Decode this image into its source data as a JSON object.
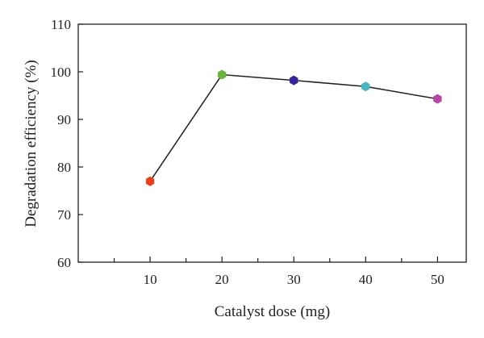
{
  "chart_data": {
    "type": "line",
    "title": "",
    "xlabel": "Catalyst dose (mg)",
    "ylabel": "Degradation efficiency (%)",
    "x": [
      10,
      20,
      30,
      40,
      50
    ],
    "xticks": [
      "10",
      "20",
      "30",
      "40",
      "50"
    ],
    "xlim": [
      0,
      54
    ],
    "ylim": [
      60,
      110
    ],
    "yticks": [
      "60",
      "70",
      "80",
      "90",
      "100",
      "110"
    ],
    "grid": false,
    "legend": "none",
    "series": [
      {
        "values": [
          77.0,
          99.4,
          98.2,
          96.9,
          94.3
        ],
        "line_color": "#231f20",
        "marker": "hexagon",
        "point_colors": [
          "#e5411f",
          "#6ab43e",
          "#35249a",
          "#4bb5be",
          "#b648a5"
        ]
      }
    ]
  }
}
